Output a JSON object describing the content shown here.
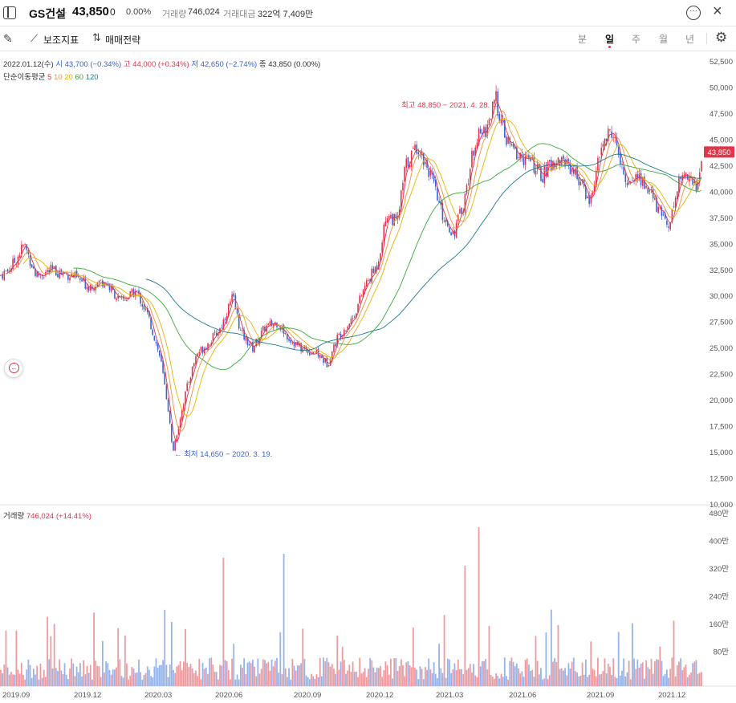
{
  "header": {
    "stock_name": "GS건설",
    "price": "43,850",
    "change": "0",
    "change_pct": "0.00%",
    "volume_label": "거래량",
    "volume_value": "746,024",
    "amount_label": "거래대금",
    "amount_value": "322억 7,409만",
    "icons": [
      "sidebar-toggle-icon",
      "more-icon",
      "close-icon"
    ]
  },
  "toolbar": {
    "indicator_label": "보조지표",
    "strategy_label": "매매전략",
    "periods": [
      "분",
      "일",
      "주",
      "월",
      "년"
    ],
    "active_period": "일"
  },
  "legend": {
    "date": "2022.01.12(수)",
    "open": "시 43,700 (−0.34%)",
    "high": "고 44,000 (+0.34%)",
    "low": "저 42,650 (−2.74%)",
    "close": "종 43,850 (0.00%)",
    "ma_label": "단순이동평균",
    "ma5": "5",
    "ma10": "10",
    "ma20": "20",
    "ma60": "60",
    "ma120": "120"
  },
  "volume_legend": {
    "label": "거래량",
    "value": "746,024 (+14.41%)"
  },
  "annotations": {
    "high": "최고 48,850 − 2021. 4. 28. →",
    "low": "← 최저 14,650 − 2020. 3. 19."
  },
  "chart_data": {
    "type": "candlestick",
    "price_axis": [
      "52,500",
      "50,000",
      "47,500",
      "45,000",
      "42,500",
      "40,000",
      "37,500",
      "35,000",
      "32,500",
      "30,000",
      "27,500",
      "25,000",
      "22,500",
      "20,000",
      "17,500",
      "15,000",
      "12,500",
      "10,000"
    ],
    "price_range": [
      10000,
      53500
    ],
    "current_price_tag": "43,850",
    "volume_axis": [
      "480만",
      "400만",
      "320만",
      "240만",
      "160만",
      "80만"
    ],
    "date_axis": [
      "2019.09",
      "2019.12",
      "2020.03",
      "2020.06",
      "2020.09",
      "2020.12",
      "2021.03",
      "2021.06",
      "2021.09",
      "2021.12"
    ],
    "price_path": [
      [
        0,
        32000
      ],
      [
        10,
        32500
      ],
      [
        20,
        33500
      ],
      [
        30,
        35000
      ],
      [
        45,
        32000
      ],
      [
        65,
        32500
      ],
      [
        90,
        32000
      ],
      [
        110,
        31000
      ],
      [
        130,
        31500
      ],
      [
        150,
        29500
      ],
      [
        170,
        30500
      ],
      [
        185,
        28000
      ],
      [
        200,
        24000
      ],
      [
        210,
        19000
      ],
      [
        215,
        15000
      ],
      [
        222,
        17500
      ],
      [
        232,
        21000
      ],
      [
        245,
        24500
      ],
      [
        260,
        25500
      ],
      [
        275,
        27000
      ],
      [
        290,
        30000
      ],
      [
        300,
        26500
      ],
      [
        315,
        25000
      ],
      [
        330,
        27000
      ],
      [
        345,
        27500
      ],
      [
        360,
        26000
      ],
      [
        375,
        25000
      ],
      [
        395,
        24500
      ],
      [
        408,
        23500
      ],
      [
        420,
        26000
      ],
      [
        440,
        28000
      ],
      [
        455,
        31000
      ],
      [
        470,
        33000
      ],
      [
        482,
        38000
      ],
      [
        495,
        37000
      ],
      [
        505,
        42500
      ],
      [
        520,
        44500
      ],
      [
        535,
        42000
      ],
      [
        550,
        38000
      ],
      [
        565,
        36000
      ],
      [
        578,
        39000
      ],
      [
        592,
        45000
      ],
      [
        605,
        46000
      ],
      [
        618,
        48850
      ],
      [
        630,
        45000
      ],
      [
        645,
        43500
      ],
      [
        660,
        43000
      ],
      [
        675,
        41500
      ],
      [
        690,
        43000
      ],
      [
        705,
        43000
      ],
      [
        720,
        41500
      ],
      [
        735,
        39000
      ],
      [
        750,
        44500
      ],
      [
        763,
        46000
      ],
      [
        778,
        41000
      ],
      [
        795,
        41500
      ],
      [
        810,
        40000
      ],
      [
        822,
        38000
      ],
      [
        835,
        37000
      ],
      [
        845,
        41000
      ],
      [
        858,
        42000
      ],
      [
        868,
        40000
      ],
      [
        875,
        43850
      ]
    ],
    "ma_series": [
      {
        "name": "5",
        "color": "#e0354a",
        "lag": 3
      },
      {
        "name": "10",
        "color": "#f2903a",
        "lag": 7
      },
      {
        "name": "20",
        "color": "#e6b400",
        "lag": 14
      },
      {
        "name": "60",
        "color": "#3aa83a",
        "lag": 45
      },
      {
        "name": "120",
        "color": "#1f7a8c",
        "lag": 90
      }
    ],
    "colors": {
      "up": "#e0354a",
      "down": "#3a62d6"
    }
  }
}
